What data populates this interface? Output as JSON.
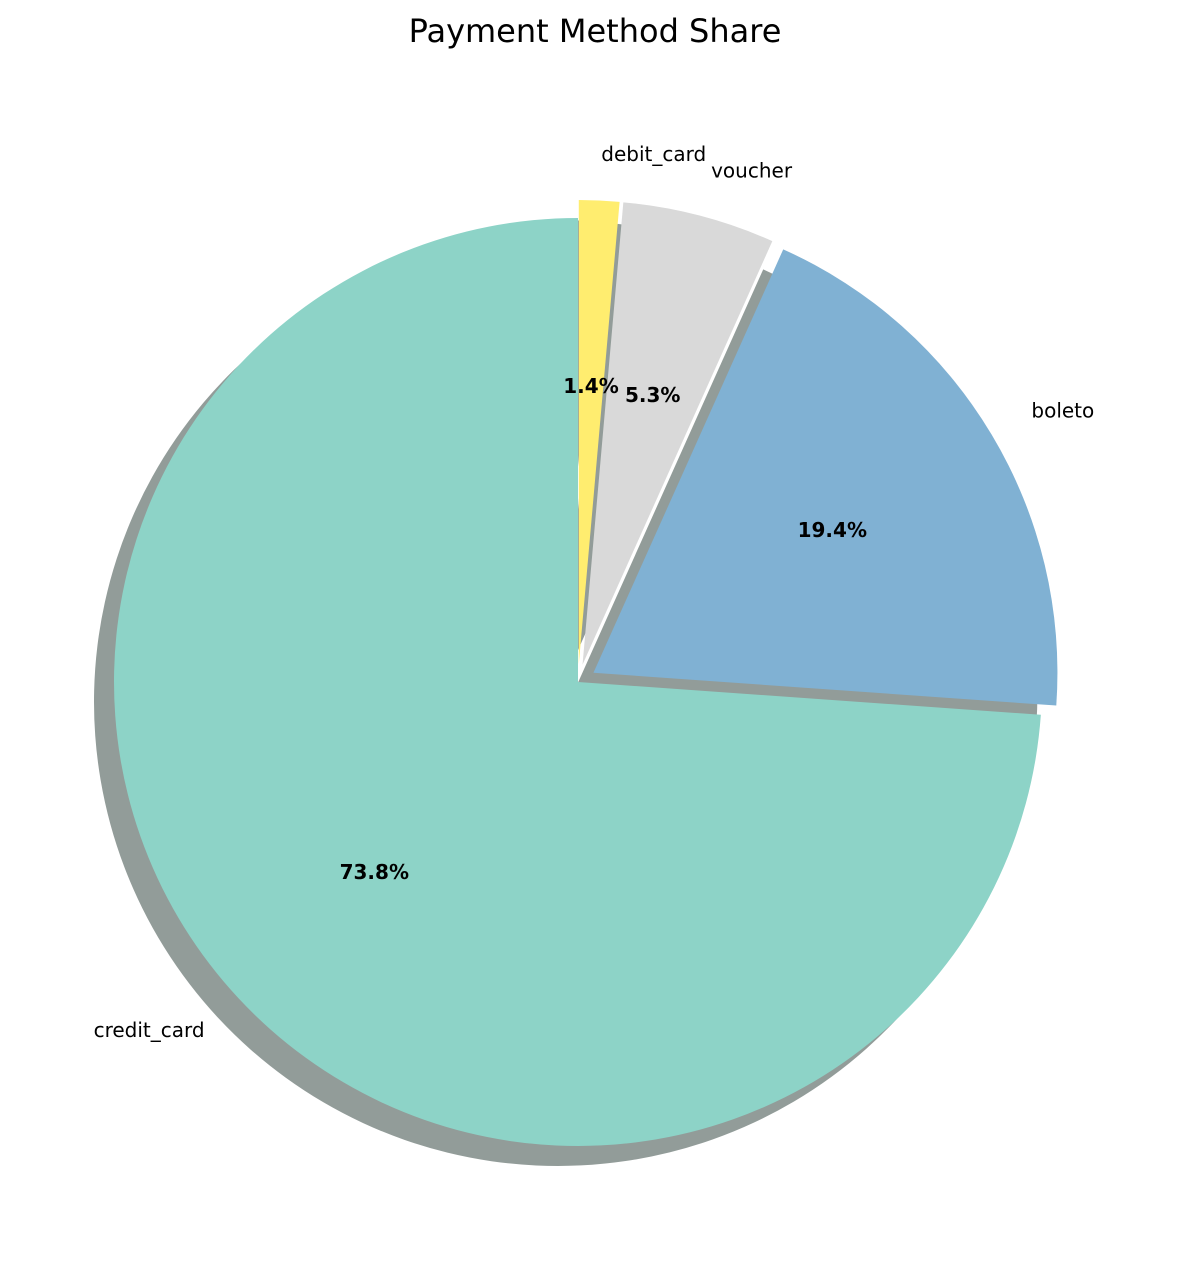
{
  "chart_data": {
    "type": "pie",
    "title": "Payment Method Share",
    "categories": [
      "credit_card",
      "boleto",
      "voucher",
      "debit_card"
    ],
    "values": [
      73.8,
      19.4,
      5.3,
      1.4
    ],
    "percent_labels": [
      "73.8%",
      "19.4%",
      "5.3%",
      "1.4%"
    ],
    "colors": [
      "#8dd3c7",
      "#80b1d3",
      "#d9d9d9",
      "#ffed6f"
    ],
    "start_angle_deg": 90,
    "direction": "counterclockwise",
    "shadow": true,
    "exploded": [
      "boleto",
      "voucher",
      "debit_card"
    ],
    "legend": false
  }
}
